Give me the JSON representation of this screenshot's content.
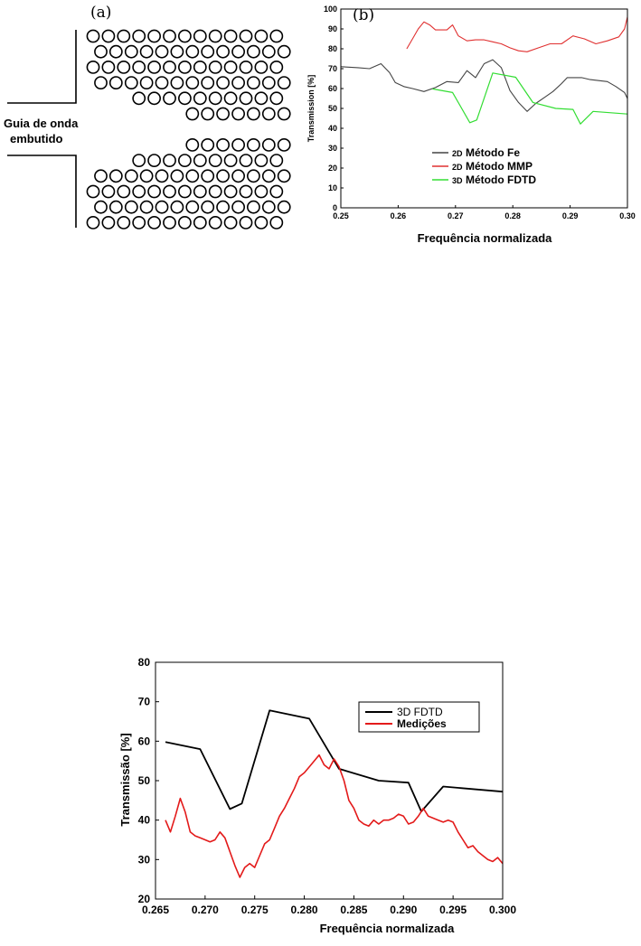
{
  "diagram": {
    "panel_label": "(a)",
    "waveguide_label_line1": "Guia de onda",
    "waveguide_label_line2": "embutido"
  },
  "chart_data": [
    {
      "type": "line",
      "panel_label": "(b)",
      "title": "",
      "xlabel": "Frequência normalizada",
      "ylabel": "Transmission [%]",
      "xlim": [
        0.25,
        0.3
      ],
      "ylim": [
        0,
        100
      ],
      "xticks": [
        "0.25",
        "0.26",
        "0.27",
        "0.28",
        "0.29",
        "0.30"
      ],
      "yticks": [
        "0",
        "10",
        "20",
        "30",
        "40",
        "50",
        "60",
        "70",
        "80",
        "90",
        "100"
      ],
      "legend_position": "center",
      "grid": false,
      "series": [
        {
          "prefix": "2D",
          "name": "Método Fe",
          "color": "#444444",
          "x": [
            0.25,
            0.253,
            0.255,
            0.257,
            0.2585,
            0.2595,
            0.261,
            0.2625,
            0.2645,
            0.2665,
            0.2685,
            0.2705,
            0.272,
            0.2735,
            0.275,
            0.2765,
            0.278,
            0.2795,
            0.281,
            0.2825,
            0.284,
            0.2855,
            0.287,
            0.2885,
            0.2895,
            0.2905,
            0.292,
            0.2935,
            0.295,
            0.2965,
            0.298,
            0.2995,
            0.3
          ],
          "y": [
            71,
            70.5,
            70,
            72.5,
            68,
            63,
            61,
            60,
            58.5,
            60.5,
            63.5,
            63,
            69,
            65.5,
            72.5,
            74.5,
            70.5,
            59,
            53,
            48.5,
            52.5,
            55.5,
            58.5,
            62.5,
            65.5,
            65.5,
            65.5,
            64.5,
            64,
            63.5,
            61,
            58,
            55
          ]
        },
        {
          "prefix": "2D",
          "name": "Método MMP",
          "color": "#e03030",
          "x": [
            0.2615,
            0.2625,
            0.2635,
            0.2645,
            0.2655,
            0.2665,
            0.2675,
            0.2685,
            0.2695,
            0.2705,
            0.272,
            0.2735,
            0.275,
            0.2765,
            0.278,
            0.2795,
            0.281,
            0.2825,
            0.2845,
            0.2865,
            0.2885,
            0.2905,
            0.2925,
            0.2945,
            0.2965,
            0.2985,
            0.2995,
            0.3
          ],
          "y": [
            80,
            85,
            90,
            93.5,
            92,
            89.5,
            89.5,
            89.5,
            92,
            86.5,
            84,
            84.5,
            84.5,
            83.5,
            82.5,
            80.5,
            79,
            78.5,
            80.5,
            82.5,
            82.5,
            86.5,
            85,
            82.5,
            84,
            86,
            90,
            96
          ]
        },
        {
          "prefix": "3D",
          "name": "Método FDTD",
          "color": "#33dd33",
          "x": [
            0.266,
            0.2695,
            0.2725,
            0.2737,
            0.2765,
            0.2805,
            0.2835,
            0.2875,
            0.2905,
            0.2918,
            0.294,
            0.3
          ],
          "y": [
            59.8,
            58,
            42.8,
            44.2,
            67.8,
            65.7,
            53,
            50,
            49.5,
            42.2,
            48.5,
            47.2
          ]
        }
      ]
    },
    {
      "type": "line",
      "title": "",
      "xlabel": "Frequência normalizada",
      "ylabel": "Transmissão  [%]",
      "xlim": [
        0.265,
        0.3
      ],
      "ylim": [
        20,
        80
      ],
      "xticks": [
        "0.265",
        "0.270",
        "0.275",
        "0.280",
        "0.285",
        "0.290",
        "0.295",
        "0.300"
      ],
      "yticks": [
        "20",
        "30",
        "40",
        "50",
        "60",
        "70",
        "80"
      ],
      "legend_position": "top-right",
      "grid": false,
      "series": [
        {
          "name": "3D FDTD",
          "color": "#000000",
          "x": [
            0.266,
            0.2695,
            0.2725,
            0.2737,
            0.2765,
            0.2805,
            0.2835,
            0.2875,
            0.2905,
            0.2918,
            0.294,
            0.3
          ],
          "y": [
            59.8,
            58,
            42.8,
            44.2,
            67.8,
            65.7,
            53,
            50,
            49.5,
            42.2,
            48.5,
            47.2
          ]
        },
        {
          "name": "Medições",
          "color": "#e31a1a",
          "x": [
            0.266,
            0.2665,
            0.267,
            0.2675,
            0.268,
            0.2685,
            0.269,
            0.2695,
            0.27,
            0.2705,
            0.271,
            0.2715,
            0.272,
            0.2725,
            0.273,
            0.2735,
            0.274,
            0.2745,
            0.275,
            0.2755,
            0.276,
            0.2765,
            0.277,
            0.2775,
            0.278,
            0.2785,
            0.279,
            0.2795,
            0.28,
            0.2805,
            0.281,
            0.2815,
            0.282,
            0.2825,
            0.283,
            0.2835,
            0.284,
            0.2845,
            0.285,
            0.2855,
            0.286,
            0.2865,
            0.287,
            0.2875,
            0.288,
            0.2885,
            0.289,
            0.2895,
            0.29,
            0.2905,
            0.291,
            0.2915,
            0.292,
            0.2925,
            0.293,
            0.2935,
            0.294,
            0.2945,
            0.295,
            0.2955,
            0.296,
            0.2965,
            0.297,
            0.2975,
            0.298,
            0.2985,
            0.299,
            0.2995,
            0.3
          ],
          "y": [
            40,
            37,
            41,
            45.5,
            42,
            37,
            36,
            35.5,
            35,
            34.5,
            35,
            37,
            35.5,
            32,
            28.5,
            25.5,
            28,
            29,
            28,
            31,
            34,
            35,
            38,
            41,
            43,
            45.5,
            48,
            51,
            52,
            53.5,
            55,
            56.5,
            54,
            53,
            55.5,
            53.5,
            50,
            45,
            43,
            40,
            39,
            38.5,
            40,
            39,
            40,
            40,
            40.5,
            41.5,
            41,
            39,
            39.5,
            41,
            43,
            41,
            40.5,
            40,
            39.5,
            40,
            39.5,
            37,
            35,
            33,
            33.5,
            32,
            31,
            30,
            29.5,
            30.5,
            29
          ]
        }
      ]
    }
  ]
}
